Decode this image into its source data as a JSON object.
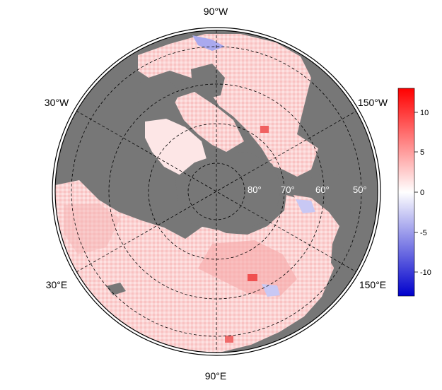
{
  "map": {
    "projection": "north-polar-stereographic",
    "ocean_color": "#777777",
    "land_fill": "white-red-blue anomaly",
    "longitude_labels": {
      "top": "90°W",
      "upper_left": "30°W",
      "upper_right": "150°W",
      "lower_left": "30°E",
      "lower_right": "150°E",
      "bottom": "90°E"
    },
    "latitude_labels": [
      "80°",
      "70°",
      "60°",
      "50°"
    ]
  },
  "colorbar": {
    "colors": {
      "max": "#ff0000",
      "mid": "#ffffff",
      "min": "#0000cc"
    },
    "range": [
      -13,
      13
    ],
    "ticks": [
      "10",
      "5",
      "0",
      "-5",
      "-10"
    ]
  }
}
